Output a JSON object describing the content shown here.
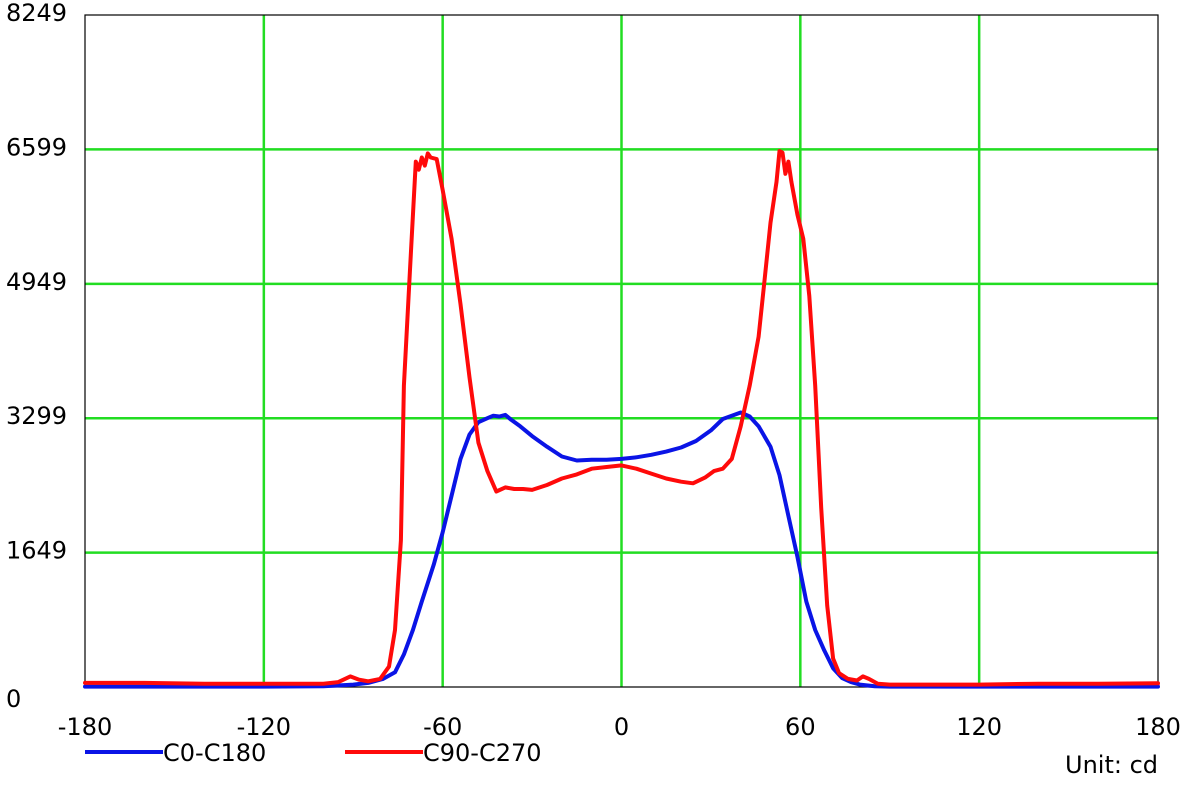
{
  "chart_data": {
    "type": "line",
    "title": "",
    "xlabel": "",
    "ylabel": "",
    "unit_label": "Unit: cd",
    "xlim": [
      -180,
      180
    ],
    "ylim": [
      0,
      8249
    ],
    "x_ticks": [
      -180,
      -120,
      -60,
      0,
      60,
      120,
      180
    ],
    "x_tick_labels": [
      "-180",
      "-120",
      "-60",
      "0",
      "60",
      "120",
      "180"
    ],
    "y_ticks": [
      0,
      1649,
      3299,
      4949,
      6599,
      8249
    ],
    "y_tick_labels": [
      "0",
      "1649",
      "3299",
      "4949",
      "6599",
      "8249"
    ],
    "grid": true,
    "grid_color": "#22dd22",
    "legend_position": "bottom-left",
    "series": [
      {
        "name": "C0-C180",
        "color": "#0a14e6",
        "points": [
          [
            -180,
            5
          ],
          [
            -150,
            5
          ],
          [
            -120,
            5
          ],
          [
            -100,
            10
          ],
          [
            -90,
            30
          ],
          [
            -85,
            50
          ],
          [
            -80,
            100
          ],
          [
            -76,
            180
          ],
          [
            -73,
            400
          ],
          [
            -70,
            700
          ],
          [
            -67,
            1050
          ],
          [
            -63,
            1500
          ],
          [
            -60,
            1900
          ],
          [
            -57,
            2350
          ],
          [
            -54,
            2800
          ],
          [
            -51,
            3100
          ],
          [
            -48,
            3250
          ],
          [
            -45,
            3300
          ],
          [
            -43,
            3330
          ],
          [
            -41,
            3320
          ],
          [
            -39,
            3340
          ],
          [
            -37,
            3280
          ],
          [
            -34,
            3200
          ],
          [
            -30,
            3080
          ],
          [
            -25,
            2950
          ],
          [
            -20,
            2830
          ],
          [
            -15,
            2780
          ],
          [
            -10,
            2790
          ],
          [
            -5,
            2790
          ],
          [
            0,
            2800
          ],
          [
            5,
            2820
          ],
          [
            10,
            2850
          ],
          [
            15,
            2890
          ],
          [
            20,
            2940
          ],
          [
            25,
            3020
          ],
          [
            30,
            3150
          ],
          [
            34,
            3290
          ],
          [
            37,
            3330
          ],
          [
            40,
            3370
          ],
          [
            43,
            3320
          ],
          [
            46,
            3200
          ],
          [
            50,
            2950
          ],
          [
            53,
            2600
          ],
          [
            56,
            2100
          ],
          [
            59,
            1600
          ],
          [
            62,
            1050
          ],
          [
            65,
            700
          ],
          [
            68,
            450
          ],
          [
            71,
            230
          ],
          [
            74,
            110
          ],
          [
            77,
            60
          ],
          [
            80,
            30
          ],
          [
            85,
            10
          ],
          [
            90,
            5
          ],
          [
            120,
            5
          ],
          [
            150,
            5
          ],
          [
            180,
            5
          ]
        ]
      },
      {
        "name": "C90-C270",
        "color": "#ff0a0a",
        "points": [
          [
            -180,
            50
          ],
          [
            -160,
            50
          ],
          [
            -140,
            40
          ],
          [
            -120,
            40
          ],
          [
            -100,
            40
          ],
          [
            -95,
            60
          ],
          [
            -91,
            130
          ],
          [
            -88,
            90
          ],
          [
            -85,
            70
          ],
          [
            -81,
            100
          ],
          [
            -78,
            250
          ],
          [
            -76,
            700
          ],
          [
            -74,
            1800
          ],
          [
            -73,
            3700
          ],
          [
            -71,
            5100
          ],
          [
            -69,
            6450
          ],
          [
            -68,
            6350
          ],
          [
            -67,
            6500
          ],
          [
            -66,
            6400
          ],
          [
            -65,
            6550
          ],
          [
            -64,
            6500
          ],
          [
            -62,
            6480
          ],
          [
            -60,
            6100
          ],
          [
            -57,
            5500
          ],
          [
            -54,
            4700
          ],
          [
            -51,
            3800
          ],
          [
            -48,
            3000
          ],
          [
            -45,
            2650
          ],
          [
            -42,
            2400
          ],
          [
            -39,
            2450
          ],
          [
            -36,
            2430
          ],
          [
            -33,
            2430
          ],
          [
            -30,
            2420
          ],
          [
            -25,
            2480
          ],
          [
            -20,
            2560
          ],
          [
            -15,
            2610
          ],
          [
            -10,
            2680
          ],
          [
            -5,
            2700
          ],
          [
            0,
            2720
          ],
          [
            5,
            2680
          ],
          [
            10,
            2620
          ],
          [
            15,
            2560
          ],
          [
            20,
            2520
          ],
          [
            24,
            2500
          ],
          [
            28,
            2570
          ],
          [
            31,
            2650
          ],
          [
            34,
            2680
          ],
          [
            37,
            2800
          ],
          [
            40,
            3200
          ],
          [
            43,
            3700
          ],
          [
            46,
            4300
          ],
          [
            48,
            5000
          ],
          [
            50,
            5700
          ],
          [
            52,
            6200
          ],
          [
            53,
            6580
          ],
          [
            54,
            6560
          ],
          [
            55,
            6300
          ],
          [
            56,
            6450
          ],
          [
            57,
            6200
          ],
          [
            59,
            5800
          ],
          [
            61,
            5500
          ],
          [
            63,
            4800
          ],
          [
            65,
            3700
          ],
          [
            67,
            2200
          ],
          [
            69,
            1000
          ],
          [
            71,
            350
          ],
          [
            73,
            170
          ],
          [
            76,
            100
          ],
          [
            79,
            80
          ],
          [
            81,
            130
          ],
          [
            83,
            100
          ],
          [
            86,
            40
          ],
          [
            90,
            30
          ],
          [
            100,
            30
          ],
          [
            120,
            30
          ],
          [
            140,
            40
          ],
          [
            160,
            40
          ],
          [
            180,
            45
          ]
        ]
      }
    ]
  }
}
